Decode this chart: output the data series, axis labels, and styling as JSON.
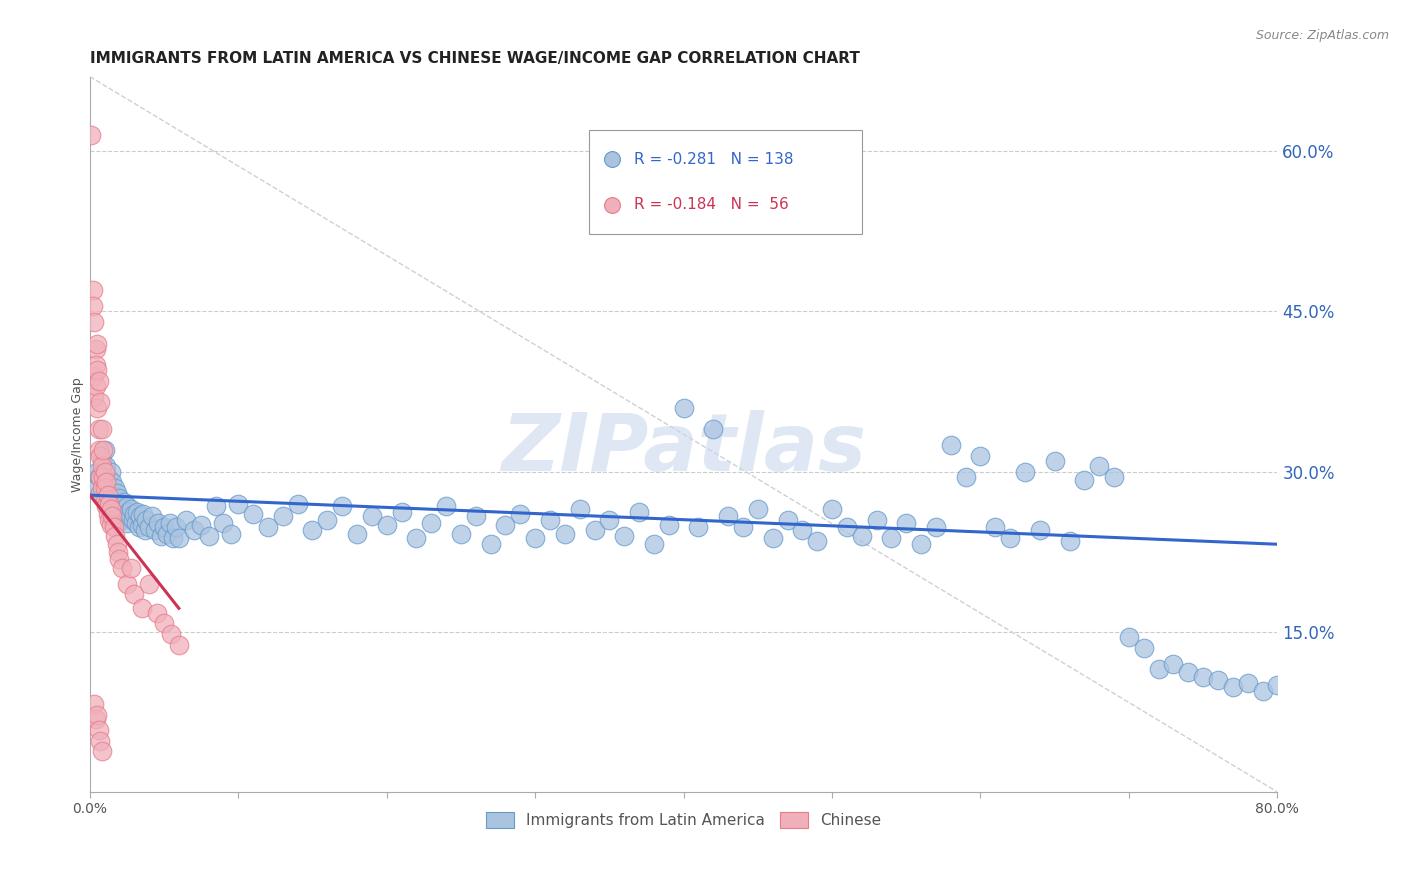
{
  "title": "IMMIGRANTS FROM LATIN AMERICA VS CHINESE WAGE/INCOME GAP CORRELATION CHART",
  "source": "Source: ZipAtlas.com",
  "ylabel": "Wage/Income Gap",
  "xlim": [
    0.0,
    0.8
  ],
  "ylim": [
    0.0,
    0.67
  ],
  "yticks_right": [
    0.15,
    0.3,
    0.45,
    0.6
  ],
  "ytick_labels_right": [
    "15.0%",
    "30.0%",
    "45.0%",
    "60.0%"
  ],
  "grid_color": "#cccccc",
  "blue_color": "#6699cc",
  "blue_fill": "#aac4e0",
  "pink_color": "#e87a8a",
  "pink_fill": "#f0b0bb",
  "trend_blue": "#3366cc",
  "trend_pink": "#cc3355",
  "legend_R_blue": "-0.281",
  "legend_N_blue": "138",
  "legend_R_pink": "-0.184",
  "legend_N_pink": " 56",
  "legend_label_blue": "Immigrants from Latin America",
  "legend_label_pink": "Chinese",
  "watermark": "ZIPatlas",
  "watermark_color": "#c8d8ec",
  "blue_scatter_x": [
    0.004,
    0.005,
    0.006,
    0.007,
    0.008,
    0.009,
    0.01,
    0.01,
    0.011,
    0.011,
    0.012,
    0.012,
    0.013,
    0.013,
    0.014,
    0.014,
    0.015,
    0.015,
    0.016,
    0.016,
    0.017,
    0.017,
    0.018,
    0.018,
    0.019,
    0.019,
    0.02,
    0.02,
    0.021,
    0.021,
    0.022,
    0.022,
    0.023,
    0.024,
    0.025,
    0.025,
    0.026,
    0.027,
    0.028,
    0.029,
    0.03,
    0.031,
    0.032,
    0.033,
    0.034,
    0.035,
    0.036,
    0.037,
    0.038,
    0.04,
    0.042,
    0.044,
    0.046,
    0.048,
    0.05,
    0.052,
    0.054,
    0.056,
    0.058,
    0.06,
    0.065,
    0.07,
    0.075,
    0.08,
    0.085,
    0.09,
    0.095,
    0.1,
    0.11,
    0.12,
    0.13,
    0.14,
    0.15,
    0.16,
    0.17,
    0.18,
    0.19,
    0.2,
    0.21,
    0.22,
    0.23,
    0.24,
    0.25,
    0.26,
    0.27,
    0.28,
    0.29,
    0.3,
    0.31,
    0.32,
    0.33,
    0.34,
    0.35,
    0.36,
    0.37,
    0.38,
    0.39,
    0.4,
    0.41,
    0.42,
    0.43,
    0.44,
    0.45,
    0.46,
    0.47,
    0.48,
    0.49,
    0.5,
    0.51,
    0.52,
    0.53,
    0.54,
    0.55,
    0.56,
    0.57,
    0.58,
    0.59,
    0.6,
    0.61,
    0.62,
    0.63,
    0.64,
    0.65,
    0.66,
    0.67,
    0.68,
    0.69,
    0.7,
    0.71,
    0.72,
    0.73,
    0.74,
    0.75,
    0.76,
    0.77,
    0.78,
    0.79,
    0.8
  ],
  "blue_scatter_y": [
    0.285,
    0.3,
    0.295,
    0.28,
    0.31,
    0.295,
    0.28,
    0.32,
    0.29,
    0.305,
    0.275,
    0.295,
    0.285,
    0.27,
    0.3,
    0.28,
    0.265,
    0.29,
    0.275,
    0.26,
    0.285,
    0.27,
    0.26,
    0.28,
    0.27,
    0.255,
    0.268,
    0.275,
    0.26,
    0.27,
    0.265,
    0.255,
    0.272,
    0.258,
    0.268,
    0.252,
    0.262,
    0.258,
    0.265,
    0.255,
    0.26,
    0.252,
    0.262,
    0.248,
    0.258,
    0.25,
    0.26,
    0.245,
    0.255,
    0.248,
    0.258,
    0.245,
    0.252,
    0.24,
    0.248,
    0.242,
    0.252,
    0.238,
    0.248,
    0.238,
    0.255,
    0.245,
    0.25,
    0.24,
    0.268,
    0.252,
    0.242,
    0.27,
    0.26,
    0.248,
    0.258,
    0.27,
    0.245,
    0.255,
    0.268,
    0.242,
    0.258,
    0.25,
    0.262,
    0.238,
    0.252,
    0.268,
    0.242,
    0.258,
    0.232,
    0.25,
    0.26,
    0.238,
    0.255,
    0.242,
    0.265,
    0.245,
    0.255,
    0.24,
    0.262,
    0.232,
    0.25,
    0.36,
    0.248,
    0.34,
    0.258,
    0.248,
    0.265,
    0.238,
    0.255,
    0.245,
    0.235,
    0.265,
    0.248,
    0.24,
    0.255,
    0.238,
    0.252,
    0.232,
    0.248,
    0.325,
    0.295,
    0.315,
    0.248,
    0.238,
    0.3,
    0.245,
    0.31,
    0.235,
    0.292,
    0.305,
    0.295,
    0.145,
    0.135,
    0.115,
    0.12,
    0.112,
    0.108,
    0.105,
    0.098,
    0.102,
    0.095,
    0.1
  ],
  "pink_scatter_x": [
    0.001,
    0.002,
    0.002,
    0.003,
    0.003,
    0.003,
    0.004,
    0.004,
    0.004,
    0.005,
    0.005,
    0.005,
    0.006,
    0.006,
    0.006,
    0.007,
    0.007,
    0.007,
    0.008,
    0.008,
    0.008,
    0.009,
    0.009,
    0.01,
    0.01,
    0.01,
    0.011,
    0.011,
    0.012,
    0.012,
    0.013,
    0.013,
    0.014,
    0.014,
    0.015,
    0.016,
    0.017,
    0.018,
    0.019,
    0.02,
    0.022,
    0.025,
    0.028,
    0.03,
    0.035,
    0.04,
    0.045,
    0.05,
    0.055,
    0.06,
    0.003,
    0.004,
    0.005,
    0.006,
    0.007,
    0.008
  ],
  "pink_scatter_y": [
    0.615,
    0.47,
    0.455,
    0.44,
    0.39,
    0.37,
    0.415,
    0.4,
    0.38,
    0.42,
    0.395,
    0.36,
    0.385,
    0.34,
    0.32,
    0.365,
    0.315,
    0.295,
    0.34,
    0.305,
    0.285,
    0.32,
    0.295,
    0.3,
    0.275,
    0.285,
    0.29,
    0.268,
    0.278,
    0.26,
    0.27,
    0.255,
    0.265,
    0.25,
    0.258,
    0.248,
    0.24,
    0.232,
    0.225,
    0.218,
    0.21,
    0.195,
    0.21,
    0.185,
    0.172,
    0.195,
    0.168,
    0.158,
    0.148,
    0.138,
    0.082,
    0.068,
    0.072,
    0.058,
    0.048,
    0.038
  ],
  "blue_trend_x": [
    0.0,
    0.8
  ],
  "blue_trend_y": [
    0.278,
    0.232
  ],
  "pink_trend_x": [
    0.0,
    0.06
  ],
  "pink_trend_y": [
    0.278,
    0.172
  ],
  "ref_line_x": [
    0.0,
    0.8
  ],
  "ref_line_y": [
    0.67,
    0.0
  ],
  "title_fontsize": 11,
  "axis_label_fontsize": 9,
  "tick_fontsize": 10,
  "source_fontsize": 9
}
